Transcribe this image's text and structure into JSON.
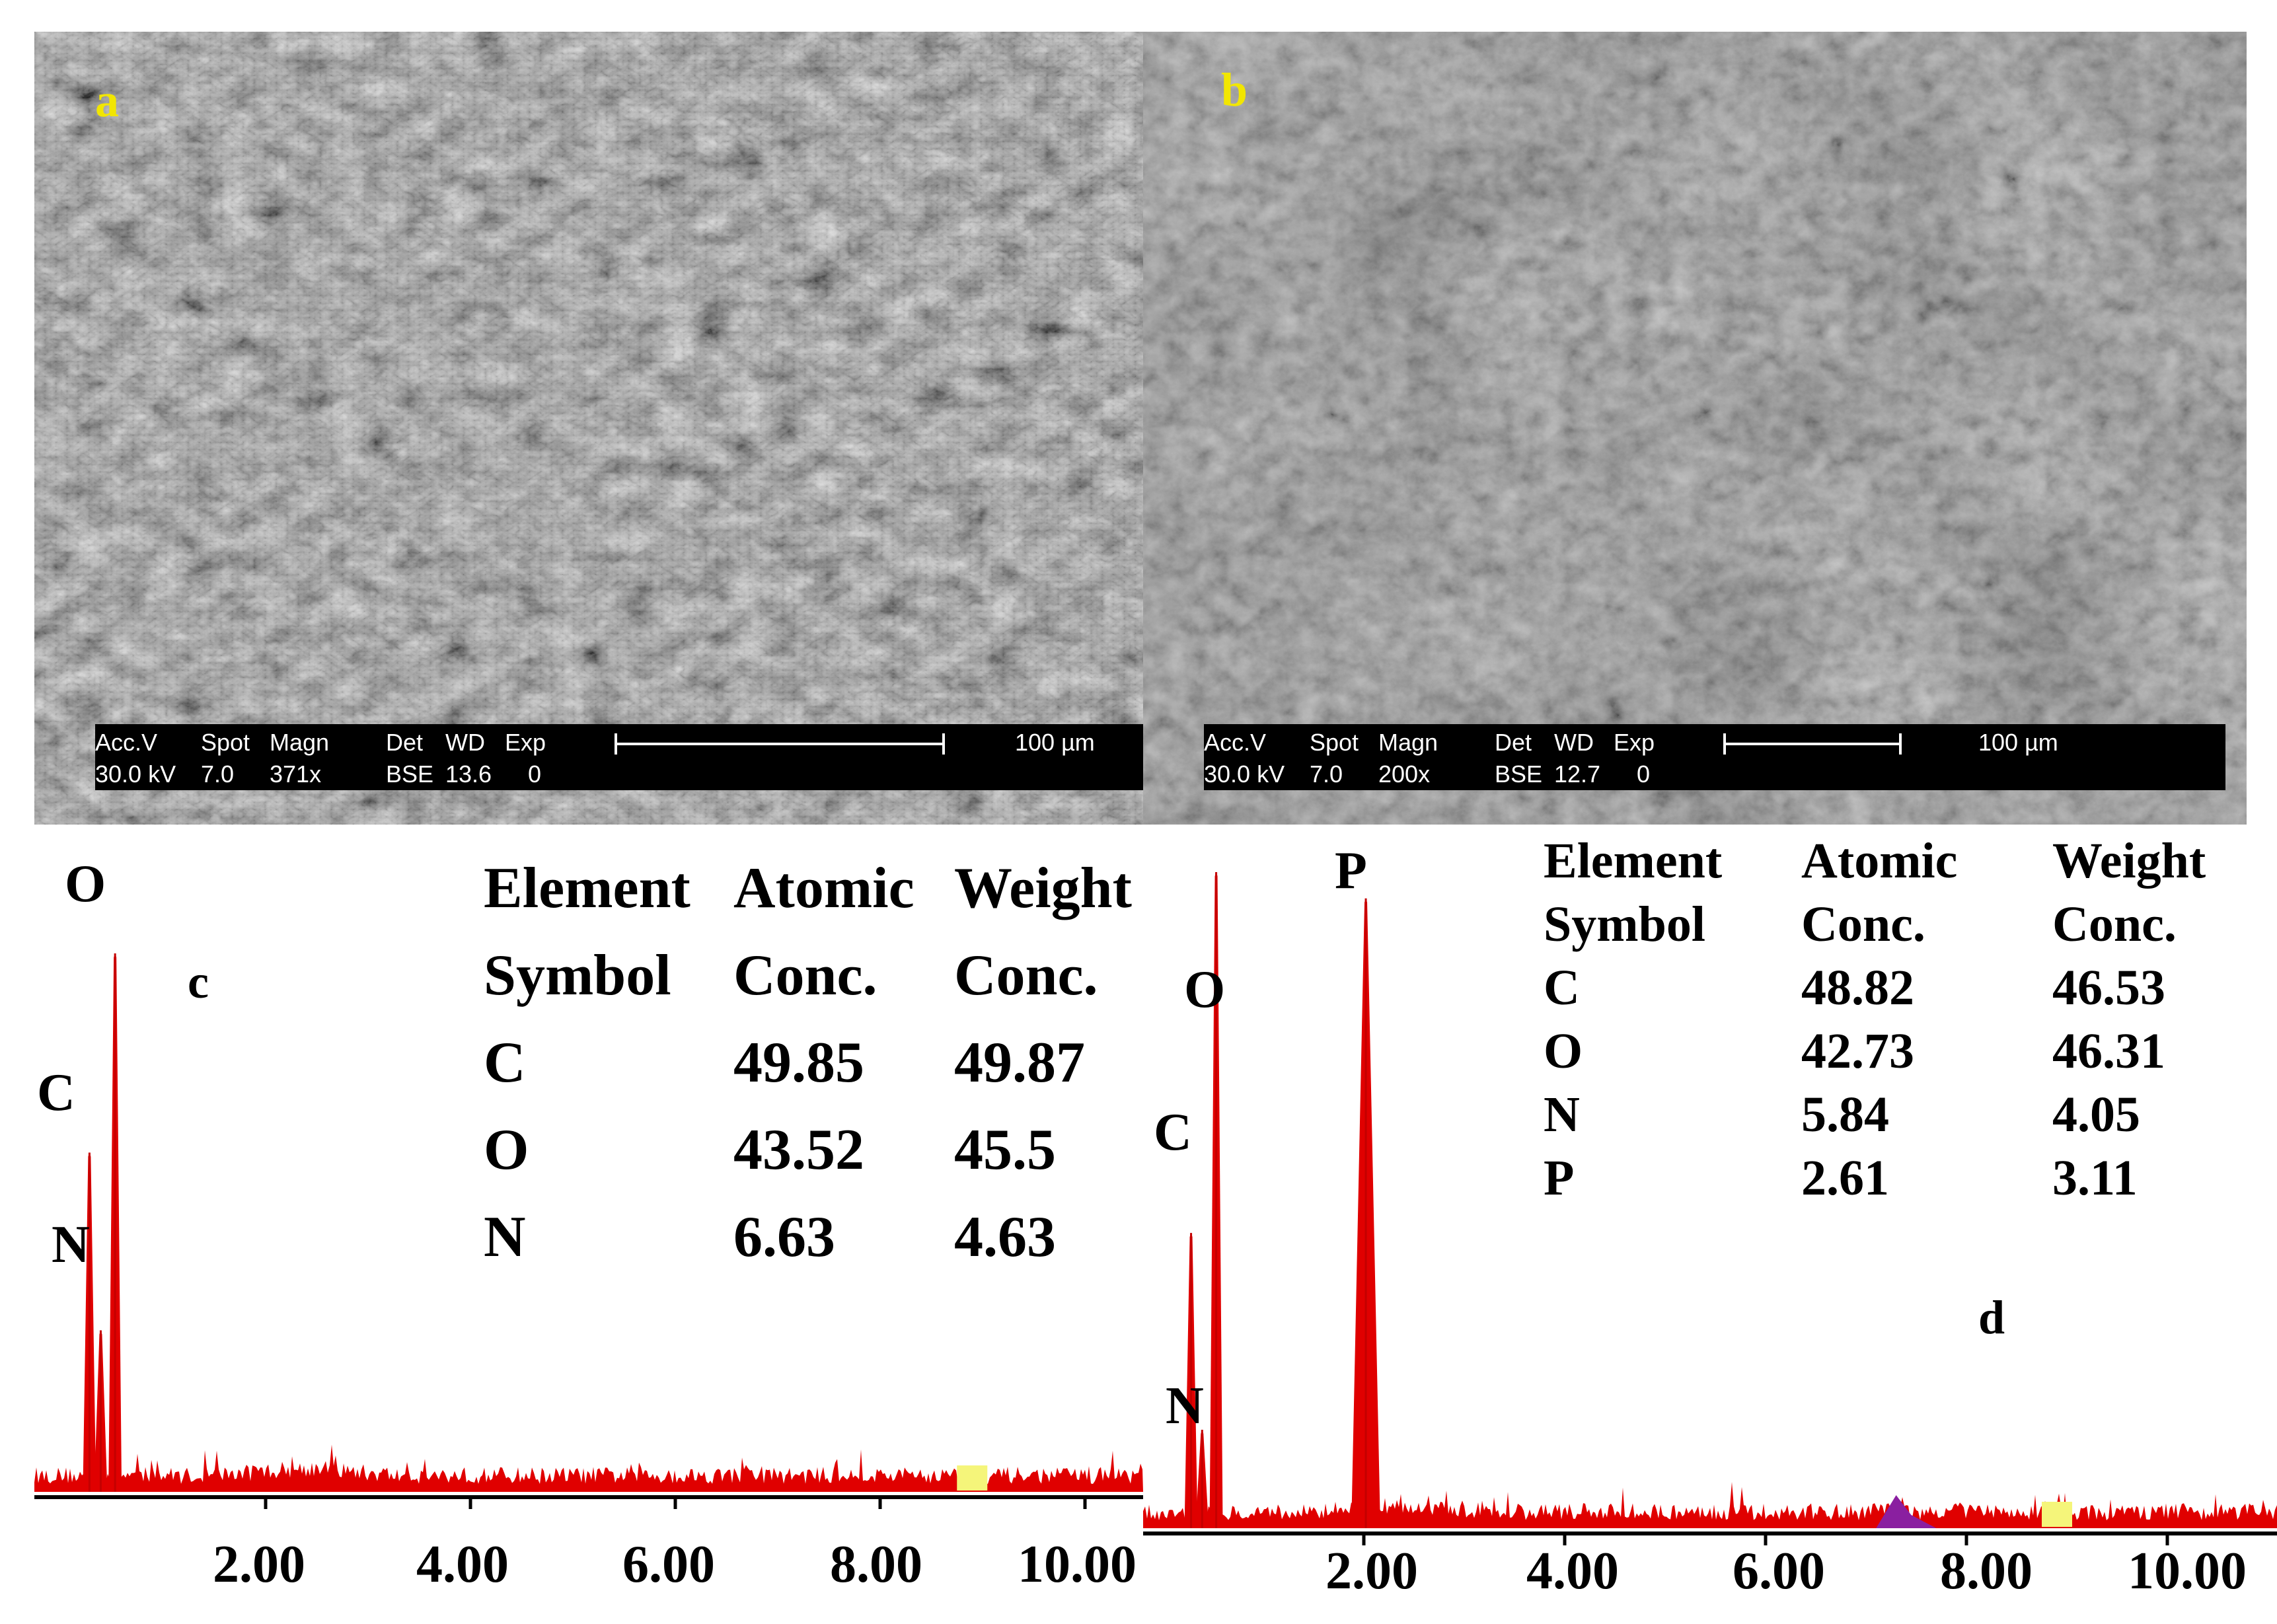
{
  "panels": {
    "a": {
      "label": "a",
      "databar": {
        "header": [
          "Acc.V",
          "Spot",
          "Magn",
          "Det",
          "WD",
          "Exp"
        ],
        "values": [
          "30.0 kV",
          "7.0",
          "371x",
          "BSE",
          "13.6",
          "0"
        ],
        "scale_label": "100 µm"
      }
    },
    "b": {
      "label": "b",
      "databar": {
        "header": [
          "Acc.V",
          "Spot",
          "Magn",
          "Det",
          "WD",
          "Exp"
        ],
        "values": [
          "30.0 kV",
          "7.0",
          "200x",
          "BSE",
          "12.7",
          "0"
        ],
        "scale_label": "100 µm"
      }
    },
    "c": {
      "label": "c",
      "table": {
        "headers_row1": [
          "Element",
          "Atomic",
          "Weight"
        ],
        "headers_row2": [
          "Symbol",
          "Conc.",
          "Conc."
        ],
        "rows": [
          [
            "C",
            "49.85",
            "49.87"
          ],
          [
            "O",
            "43.52",
            "45.5"
          ],
          [
            "N",
            "6.63",
            "4.63"
          ]
        ]
      },
      "peak_labels": [
        "O",
        "C",
        "N"
      ]
    },
    "d": {
      "label": "d",
      "table": {
        "headers_row1": [
          "Element",
          "Atomic",
          "Weight"
        ],
        "headers_row2": [
          "Symbol",
          "Conc.",
          "Conc."
        ],
        "rows": [
          [
            "C",
            "48.82",
            "46.53"
          ],
          [
            "O",
            "42.73",
            "46.31"
          ],
          [
            "N",
            "5.84",
            "4.05"
          ],
          [
            "P",
            "2.61",
            "3.11"
          ]
        ]
      },
      "peak_labels": [
        "P",
        "O",
        "C",
        "N"
      ]
    }
  },
  "chart_data": [
    {
      "type": "line",
      "panel": "c",
      "x_ticks": [
        "2.00",
        "4.00",
        "6.00",
        "8.00",
        "10.00"
      ],
      "xlim": [
        0,
        10.8
      ],
      "peaks": [
        {
          "element": "C",
          "x": 0.28,
          "relative_height": 0.63
        },
        {
          "element": "N",
          "x": 0.39,
          "relative_height": 0.3
        },
        {
          "element": "O",
          "x": 0.53,
          "relative_height": 1.0
        }
      ],
      "series_color": "#e00000",
      "marker_color": "#f5f57a"
    },
    {
      "type": "line",
      "panel": "d",
      "x_ticks": [
        "2.00",
        "4.00",
        "6.00",
        "8.00",
        "10.00"
      ],
      "xlim": [
        0,
        10.8
      ],
      "peaks": [
        {
          "element": "C",
          "x": 0.28,
          "relative_height": 0.45
        },
        {
          "element": "N",
          "x": 0.39,
          "relative_height": 0.15
        },
        {
          "element": "O",
          "x": 0.53,
          "relative_height": 1.0
        },
        {
          "element": "P",
          "x": 2.02,
          "relative_height": 0.96
        }
      ],
      "series_color": "#e00000",
      "marker_color": "#f5f57a",
      "secondary_color": "#8a1fa0"
    }
  ]
}
